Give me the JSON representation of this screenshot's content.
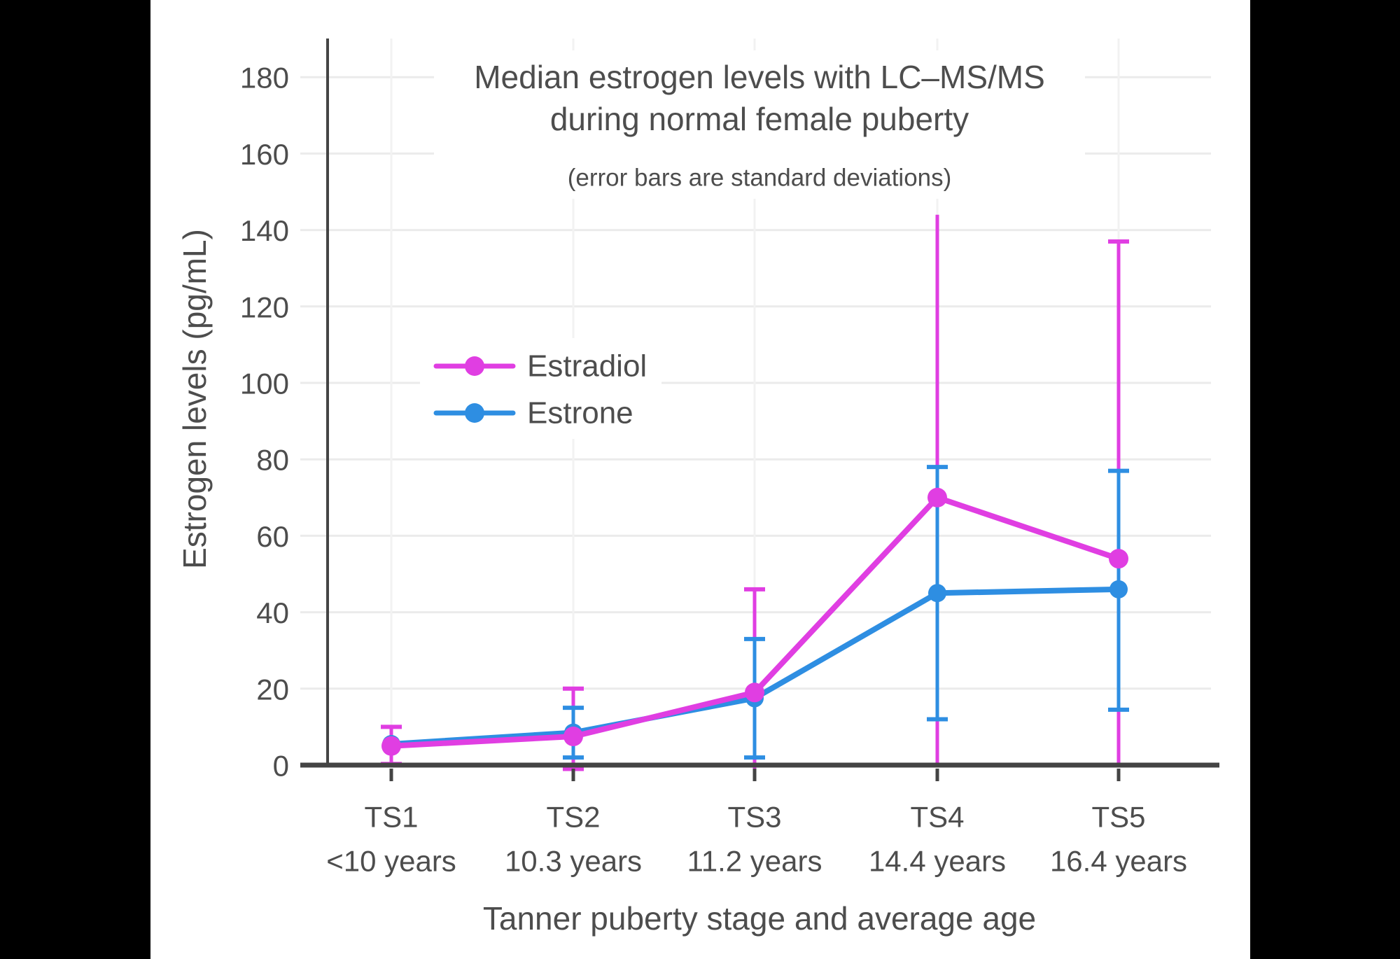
{
  "page": {
    "background_color": "#000000",
    "chart_background_color": "#ffffff"
  },
  "chart_data": {
    "type": "line",
    "title_line1": "Median estrogen levels with LC–MS/MS",
    "title_line2": "during normal female puberty",
    "subtitle": "(error bars are standard deviations)",
    "xlabel": "Tanner puberty stage and average age",
    "ylabel": "Estrogen levels (pg/mL)",
    "categories": [
      "TS1",
      "TS2",
      "TS3",
      "TS4",
      "TS5"
    ],
    "category_sublabels": [
      "<10 years",
      "10.3 years",
      "11.2 years",
      "14.4 years",
      "16.4 years"
    ],
    "y_ticks": [
      0,
      20,
      40,
      60,
      80,
      100,
      120,
      140,
      160,
      180
    ],
    "ylim": [
      0,
      190
    ],
    "grid": true,
    "legend_position": "inside-upper-left",
    "axis_color": "#444444",
    "gridline_color": "#ebebeb",
    "text_color": "#4d4d4d",
    "series": [
      {
        "name": "Estradiol",
        "color": "#e03ee2",
        "values": [
          5,
          7.5,
          19,
          70,
          54
        ],
        "error_hi": [
          10,
          20,
          46,
          144,
          137
        ],
        "error_lo": [
          0.3,
          -1,
          -2,
          -0.5,
          -0.5
        ],
        "cap_top": [
          true,
          true,
          true,
          false,
          true
        ],
        "cap_bottom": [
          true,
          true,
          false,
          false,
          false
        ]
      },
      {
        "name": "Estrone",
        "color": "#2e8ee2",
        "values": [
          5.5,
          8.5,
          17.5,
          45,
          46
        ],
        "error_hi": [
          null,
          15,
          33,
          78,
          77
        ],
        "error_lo": [
          null,
          2,
          2,
          12,
          14.5
        ],
        "cap_top": [
          false,
          true,
          true,
          true,
          true
        ],
        "cap_bottom": [
          false,
          true,
          true,
          true,
          true
        ]
      }
    ]
  }
}
